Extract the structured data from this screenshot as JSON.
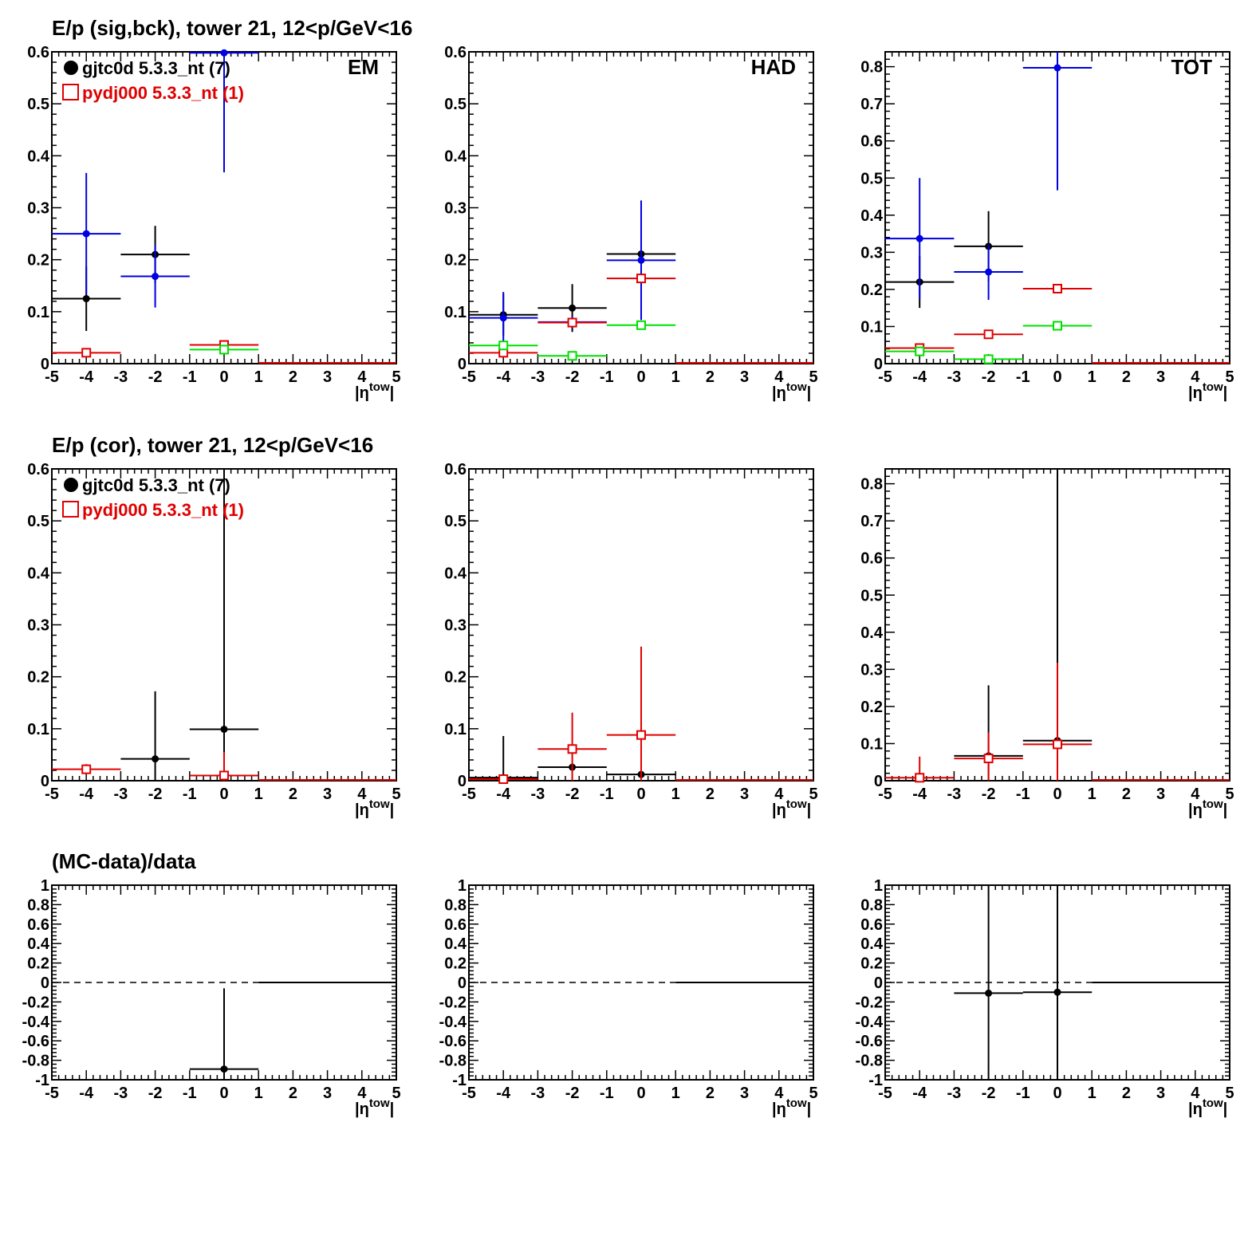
{
  "colors": {
    "black": "#000000",
    "red": "#e00000",
    "blue": "#0000e0",
    "green": "#00e000"
  },
  "rows": [
    {
      "title": "E/p (sig,bck), tower 21, 12<p/GeV<16"
    },
    {
      "title": "E/p (cor), tower 21, 12<p/GeV<16"
    },
    {
      "title": "(MC-data)/data"
    }
  ],
  "xaxis": {
    "label": "|η",
    "label_sup": "tow",
    "label_end": "|"
  },
  "legend": {
    "data_label": "gjtc0d 5.3.3_nt (7)",
    "mc_label": "pydj000 5.3.3_nt (1)"
  },
  "chart_data": [
    {
      "type": "scatter",
      "row": 0,
      "col": 0,
      "corner_label": "EM",
      "show_legend": true,
      "xlim": [
        -5,
        5
      ],
      "ylim": [
        0,
        0.6
      ],
      "yticks": [
        0,
        0.1,
        0.2,
        0.3,
        0.4,
        0.5,
        0.6
      ],
      "series": [
        {
          "name": "gjtc0d 5.3.3_nt (7)",
          "color": "black",
          "marker": "dot",
          "points": [
            {
              "x": -4,
              "xerr": 1,
              "y": 0.125,
              "yerr": 0.062
            },
            {
              "x": -2,
              "xerr": 1,
              "y": 0.21,
              "yerr": 0.055
            }
          ]
        },
        {
          "color": "blue",
          "marker": "dot",
          "points": [
            {
              "x": -4,
              "xerr": 1,
              "y": 0.25,
              "yerr": 0.117
            },
            {
              "x": -2,
              "xerr": 1,
              "y": 0.168,
              "yerr": 0.06
            },
            {
              "x": 0,
              "xerr": 1,
              "y": 0.598,
              "yerr": 0.23
            }
          ]
        },
        {
          "name": "pydj000 5.3.3_nt (1)",
          "color": "red",
          "marker": "square",
          "points": [
            {
              "x": -4,
              "xerr": 1,
              "y": 0.021,
              "yerr": 0.003
            },
            {
              "x": 0,
              "xerr": 1,
              "y": 0.036,
              "yerr": 0.003
            }
          ]
        },
        {
          "color": "green",
          "marker": "square",
          "points": [
            {
              "x": 0,
              "xerr": 1,
              "y": 0.027,
              "yerr": 0.003
            }
          ]
        }
      ]
    },
    {
      "type": "scatter",
      "row": 0,
      "col": 1,
      "corner_label": "HAD",
      "show_legend": false,
      "xlim": [
        -5,
        5
      ],
      "ylim": [
        0,
        0.6
      ],
      "yticks": [
        0,
        0.1,
        0.2,
        0.3,
        0.4,
        0.5,
        0.6
      ],
      "series": [
        {
          "color": "black",
          "marker": "dot",
          "points": [
            {
              "x": -4,
              "xerr": 1,
              "y": 0.094,
              "yerr": 0.04
            },
            {
              "x": -2,
              "xerr": 1,
              "y": 0.107,
              "yerr": 0.046
            },
            {
              "x": 0,
              "xerr": 1,
              "y": 0.211,
              "yerr": 0.1
            }
          ]
        },
        {
          "color": "blue",
          "marker": "dot",
          "points": [
            {
              "x": -4,
              "xerr": 1,
              "y": 0.088,
              "yerr": 0.05
            },
            {
              "x": -2,
              "xerr": 1,
              "y": 0.08,
              "yerr": 0.012
            },
            {
              "x": 0,
              "xerr": 1,
              "y": 0.199,
              "yerr": 0.115
            }
          ]
        },
        {
          "color": "red",
          "marker": "square",
          "points": [
            {
              "x": -4,
              "xerr": 1,
              "y": 0.021,
              "yerr": 0.003
            },
            {
              "x": -2,
              "xerr": 1,
              "y": 0.079,
              "yerr": 0.003
            },
            {
              "x": 0,
              "xerr": 1,
              "y": 0.164,
              "yerr": 0.003
            }
          ]
        },
        {
          "color": "green",
          "marker": "square",
          "points": [
            {
              "x": -4,
              "xerr": 1,
              "y": 0.035,
              "yerr": 0.003
            },
            {
              "x": -2,
              "xerr": 1,
              "y": 0.015,
              "yerr": 0.003
            },
            {
              "x": 0,
              "xerr": 1,
              "y": 0.074,
              "yerr": 0.003
            }
          ]
        }
      ]
    },
    {
      "type": "scatter",
      "row": 0,
      "col": 2,
      "corner_label": "TOT",
      "show_legend": false,
      "xlim": [
        -5,
        5
      ],
      "ylim": [
        0,
        0.84
      ],
      "yticks": [
        0,
        0.1,
        0.2,
        0.3,
        0.4,
        0.5,
        0.6,
        0.7,
        0.8
      ],
      "series": [
        {
          "color": "black",
          "marker": "dot",
          "points": [
            {
              "x": -4,
              "xerr": 1,
              "y": 0.22,
              "yerr": 0.07
            },
            {
              "x": -2,
              "xerr": 1,
              "y": 0.316,
              "yerr": 0.095
            }
          ]
        },
        {
          "color": "blue",
          "marker": "dot",
          "points": [
            {
              "x": -4,
              "xerr": 1,
              "y": 0.337,
              "yerr": 0.163
            },
            {
              "x": -2,
              "xerr": 1,
              "y": 0.247,
              "yerr": 0.075
            },
            {
              "x": 0,
              "xerr": 1,
              "y": 0.797,
              "yerr": 0.33
            }
          ]
        },
        {
          "color": "red",
          "marker": "square",
          "points": [
            {
              "x": -4,
              "xerr": 1,
              "y": 0.042,
              "yerr": 0.004
            },
            {
              "x": -2,
              "xerr": 1,
              "y": 0.079,
              "yerr": 0.004
            },
            {
              "x": 0,
              "xerr": 1,
              "y": 0.202,
              "yerr": 0.004
            }
          ]
        },
        {
          "color": "green",
          "marker": "square",
          "points": [
            {
              "x": -4,
              "xerr": 1,
              "y": 0.033,
              "yerr": 0.004
            },
            {
              "x": -2,
              "xerr": 1,
              "y": 0.012,
              "yerr": 0.004
            },
            {
              "x": 0,
              "xerr": 1,
              "y": 0.102,
              "yerr": 0.004
            }
          ]
        }
      ]
    },
    {
      "type": "scatter",
      "row": 1,
      "col": 0,
      "corner_label": "",
      "show_legend": true,
      "xlim": [
        -5,
        5
      ],
      "ylim": [
        0,
        0.6
      ],
      "yticks": [
        0,
        0.1,
        0.2,
        0.3,
        0.4,
        0.5,
        0.6
      ],
      "series": [
        {
          "name": "gjtc0d 5.3.3_nt (7)",
          "color": "black",
          "marker": "dot",
          "points": [
            {
              "x": -2,
              "xerr": 1,
              "y": 0.042,
              "yerr": 0.13
            },
            {
              "x": 0,
              "xerr": 1,
              "y": 0.099,
              "yerr": 0.5
            }
          ]
        },
        {
          "name": "pydj000 5.3.3_nt (1)",
          "color": "red",
          "marker": "square",
          "points": [
            {
              "x": -4,
              "xerr": 1,
              "y": 0.022,
              "yerr": 0.01
            },
            {
              "x": 0,
              "xerr": 1,
              "y": 0.01,
              "yerr": 0.045
            }
          ]
        }
      ]
    },
    {
      "type": "scatter",
      "row": 1,
      "col": 1,
      "corner_label": "",
      "show_legend": false,
      "xlim": [
        -5,
        5
      ],
      "ylim": [
        0,
        0.6
      ],
      "yticks": [
        0,
        0.1,
        0.2,
        0.3,
        0.4,
        0.5,
        0.6
      ],
      "series": [
        {
          "color": "black",
          "marker": "dot",
          "points": [
            {
              "x": -4,
              "xerr": 1,
              "y": 0.006,
              "yerr": 0.08
            },
            {
              "x": -2,
              "xerr": 1,
              "y": 0.026,
              "yerr": 0.004
            },
            {
              "x": 0,
              "xerr": 1,
              "y": 0.012,
              "yerr": 0.004
            }
          ]
        },
        {
          "color": "red",
          "marker": "square",
          "points": [
            {
              "x": -4,
              "xerr": 1,
              "y": 0.003,
              "yerr": 0.002
            },
            {
              "x": -2,
              "xerr": 1,
              "y": 0.061,
              "yerr": 0.07
            },
            {
              "x": 0,
              "xerr": 1,
              "y": 0.088,
              "yerr": 0.17
            }
          ]
        }
      ]
    },
    {
      "type": "scatter",
      "row": 1,
      "col": 2,
      "corner_label": "",
      "show_legend": false,
      "xlim": [
        -5,
        5
      ],
      "ylim": [
        0,
        0.84
      ],
      "yticks": [
        0,
        0.1,
        0.2,
        0.3,
        0.4,
        0.5,
        0.6,
        0.7,
        0.8
      ],
      "series": [
        {
          "color": "black",
          "marker": "dot",
          "points": [
            {
              "x": -2,
              "xerr": 1,
              "y": 0.067,
              "yerr": 0.19
            },
            {
              "x": 0,
              "xerr": 1,
              "y": 0.108,
              "yerr": 0.75
            }
          ]
        },
        {
          "color": "red",
          "marker": "square",
          "points": [
            {
              "x": -4,
              "xerr": 1,
              "y": 0.008,
              "yerr": 0.057
            },
            {
              "x": -2,
              "xerr": 1,
              "y": 0.06,
              "yerr": 0.07
            },
            {
              "x": 0,
              "xerr": 1,
              "y": 0.098,
              "yerr": 0.22
            }
          ]
        }
      ]
    },
    {
      "type": "scatter",
      "row": 2,
      "col": 0,
      "corner_label": "",
      "show_legend": false,
      "xlim": [
        -5,
        5
      ],
      "ylim": [
        -1,
        1
      ],
      "yticks": [
        -1,
        -0.8,
        -0.6,
        -0.4,
        -0.2,
        0,
        0.2,
        0.4,
        0.6,
        0.8,
        1
      ],
      "reference_line": 0,
      "series": [
        {
          "color": "black",
          "marker": "dot",
          "points": [
            {
              "x": 0,
              "xerr": 1,
              "y": -0.89,
              "yerr": 0.83
            }
          ]
        }
      ]
    },
    {
      "type": "scatter",
      "row": 2,
      "col": 1,
      "corner_label": "",
      "show_legend": false,
      "xlim": [
        -5,
        5
      ],
      "ylim": [
        -1,
        1
      ],
      "yticks": [
        -1,
        -0.8,
        -0.6,
        -0.4,
        -0.2,
        0,
        0.2,
        0.4,
        0.6,
        0.8,
        1
      ],
      "reference_line": 0,
      "series": []
    },
    {
      "type": "scatter",
      "row": 2,
      "col": 2,
      "corner_label": "",
      "show_legend": false,
      "xlim": [
        -5,
        5
      ],
      "ylim": [
        -1,
        1
      ],
      "yticks": [
        -1,
        -0.8,
        -0.6,
        -0.4,
        -0.2,
        0,
        0.2,
        0.4,
        0.6,
        0.8,
        1
      ],
      "reference_line": 0,
      "series": [
        {
          "color": "black",
          "marker": "dot",
          "points": [
            {
              "x": -2,
              "xerr": 1,
              "y": -0.11,
              "yerr": 1.2
            },
            {
              "x": 0,
              "xerr": 1,
              "y": -0.1,
              "yerr": 1.2
            }
          ]
        }
      ]
    }
  ]
}
